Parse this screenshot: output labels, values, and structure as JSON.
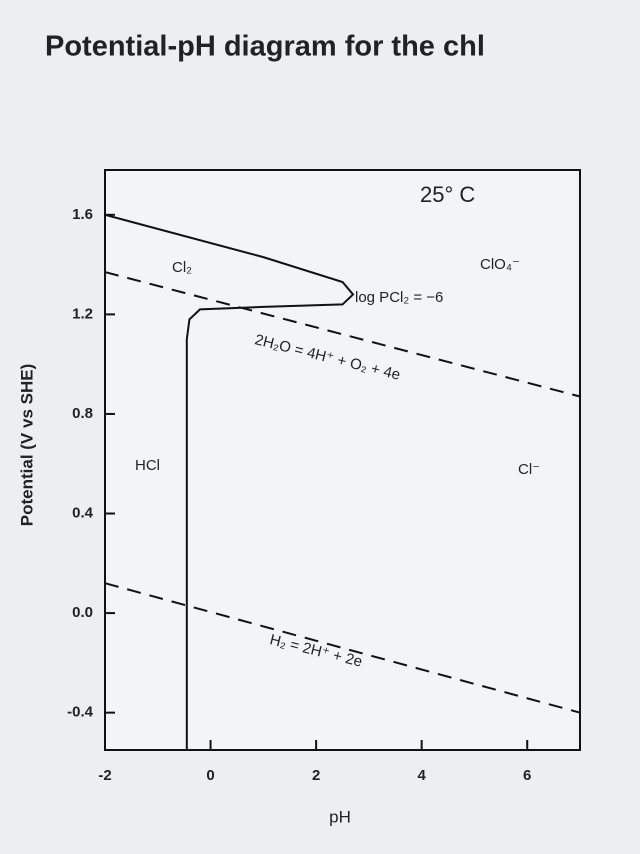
{
  "chart_data": {
    "type": "line",
    "title": "Potential-pH diagram for the chl",
    "x_label": "pH",
    "y_label": "Potential (V vs SHE)",
    "annotations": [
      "25° C",
      "Cl₂",
      "ClO₄⁻",
      "log PCl₂ = −6",
      "2H₂O = 4H⁺ + O₂ + 4e",
      "HCl",
      "Cl⁻",
      "H₂ = 2H⁺ + 2e"
    ],
    "xlim": [
      -2,
      7
    ],
    "ylim": [
      -0.55,
      1.78
    ],
    "xticks": [
      -2,
      0,
      2,
      4,
      6
    ],
    "yticks": [
      1.6,
      1.2,
      0.8,
      0.4,
      {
        "value": 0,
        "label": "0.0"
      },
      -0.4
    ],
    "series": [
      {
        "color": "#111111",
        "dashed": false,
        "x": [
          -2,
          1,
          2.5,
          2.7,
          2.5,
          1,
          -0.2,
          -0.4,
          -0.45,
          -0.45
        ],
        "values": [
          1.6,
          1.43,
          1.33,
          1.28,
          1.24,
          1.23,
          1.22,
          1.18,
          1.1,
          -0.55
        ]
      },
      {
        "color": "#111111",
        "dashed": true,
        "x": [
          -2,
          7
        ],
        "values": [
          1.37,
          0.87
        ]
      },
      {
        "color": "#111111",
        "dashed": true,
        "x": [
          -2,
          7
        ],
        "values": [
          0.12,
          -0.4
        ]
      }
    ]
  }
}
